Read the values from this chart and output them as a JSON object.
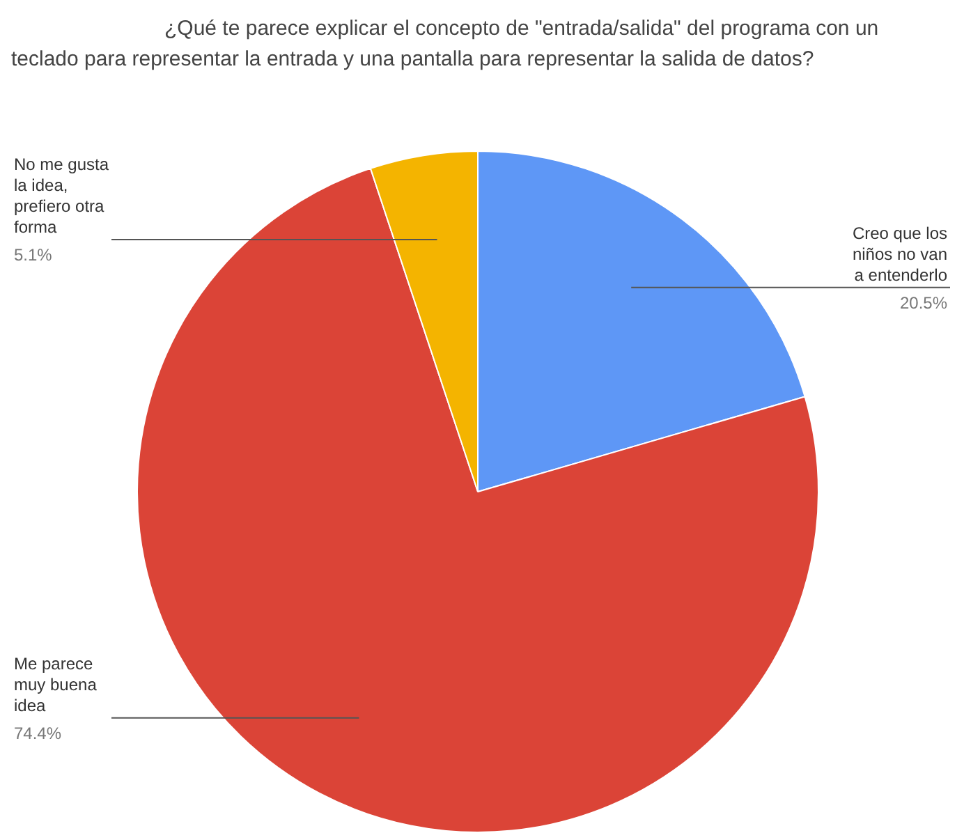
{
  "chart_data": {
    "type": "pie",
    "title": "¿Qué te parece explicar el concepto de \"entrada/salida\" del programa con un teclado para representar la entrada y una pantalla para representar la salida de datos?",
    "categories": [
      "Creo que los niños no van a entenderlo",
      "Me parece muy buena idea",
      "No me gusta la idea, prefiero otra forma"
    ],
    "values": [
      20.5,
      74.4,
      5.1
    ],
    "colors": [
      "#5e97f6",
      "#db4437",
      "#f4b400"
    ],
    "value_labels": [
      "20.5%",
      "74.4%",
      "5.1%"
    ]
  }
}
